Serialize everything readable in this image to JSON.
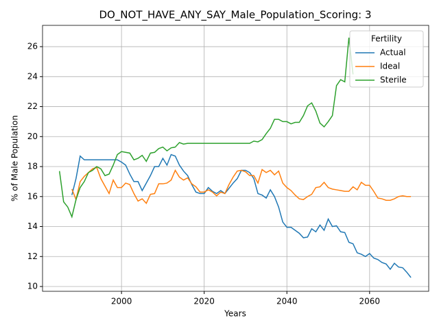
{
  "chart_data": {
    "type": "line",
    "title": "DO_NOT_HAVE_ANY_SAY_Male_Population_Scoring: 3",
    "xlabel": "Years",
    "ylabel": "% of Male Population",
    "legend_title": "Fertility",
    "legend": "upper right",
    "grid": true,
    "xlim": [
      1980.9,
      2074.3
    ],
    "xticks": [
      2000,
      2020,
      2040,
      2060
    ],
    "ylim": [
      9.68,
      27.42
    ],
    "yticks": [
      10,
      12,
      14,
      16,
      18,
      20,
      22,
      24,
      26
    ],
    "x": [
      1985,
      1986,
      1987,
      1988,
      1989,
      1990,
      1991,
      1992,
      1993,
      1994,
      1995,
      1996,
      1997,
      1998,
      1999,
      2000,
      2001,
      2002,
      2003,
      2004,
      2005,
      2006,
      2007,
      2008,
      2009,
      2010,
      2011,
      2012,
      2013,
      2014,
      2015,
      2016,
      2017,
      2018,
      2019,
      2020,
      2021,
      2022,
      2023,
      2024,
      2025,
      2026,
      2027,
      2028,
      2029,
      2030,
      2031,
      2032,
      2033,
      2034,
      2035,
      2036,
      2037,
      2038,
      2039,
      2040,
      2041,
      2042,
      2043,
      2044,
      2045,
      2046,
      2047,
      2048,
      2049,
      2050,
      2051,
      2052,
      2053,
      2054,
      2055,
      2056,
      2057,
      2058,
      2059,
      2060,
      2061,
      2062,
      2063,
      2064,
      2065,
      2066,
      2067,
      2068,
      2069,
      2070
    ],
    "series": [
      {
        "name": "Actual",
        "color": "#1f77b4",
        "values": [
          null,
          null,
          null,
          16.1,
          17.2,
          18.7,
          18.45,
          18.45,
          18.45,
          18.45,
          18.45,
          18.45,
          18.45,
          18.45,
          18.45,
          18.3,
          18.1,
          17.5,
          17.0,
          17.0,
          16.4,
          16.9,
          17.4,
          18.0,
          18.0,
          18.55,
          18.1,
          18.8,
          18.7,
          18.1,
          17.7,
          17.4,
          16.8,
          16.3,
          16.2,
          16.2,
          16.6,
          16.35,
          16.2,
          16.4,
          16.2,
          16.55,
          16.9,
          17.2,
          17.75,
          17.75,
          17.6,
          17.2,
          16.2,
          16.1,
          15.9,
          16.45,
          16.0,
          15.3,
          14.3,
          13.95,
          13.95,
          13.75,
          13.55,
          13.25,
          13.3,
          13.85,
          13.65,
          14.1,
          13.75,
          14.5,
          14.0,
          14.05,
          13.65,
          13.6,
          12.95,
          12.85,
          12.25,
          12.15,
          12.0,
          12.2,
          11.9,
          11.8,
          11.6,
          11.5,
          11.15,
          11.55,
          11.3,
          11.25,
          10.95,
          10.6
        ]
      },
      {
        "name": "Ideal",
        "color": "#ff7f0e",
        "values": [
          null,
          null,
          null,
          16.5,
          15.8,
          17.0,
          17.35,
          17.6,
          17.85,
          17.95,
          17.2,
          16.7,
          16.2,
          17.1,
          16.6,
          16.6,
          16.9,
          16.8,
          16.2,
          15.7,
          15.85,
          15.55,
          16.15,
          16.2,
          16.85,
          16.85,
          16.9,
          17.1,
          17.75,
          17.3,
          17.1,
          17.25,
          16.85,
          16.65,
          16.3,
          16.3,
          16.45,
          16.3,
          16.05,
          16.3,
          16.2,
          16.8,
          17.3,
          17.7,
          17.75,
          17.65,
          17.4,
          17.4,
          16.9,
          17.8,
          17.6,
          17.75,
          17.45,
          17.7,
          16.9,
          16.6,
          16.4,
          16.1,
          15.85,
          15.8,
          16.0,
          16.15,
          16.6,
          16.65,
          16.95,
          16.6,
          16.5,
          16.45,
          16.4,
          16.35,
          16.35,
          16.65,
          16.45,
          16.95,
          16.75,
          16.75,
          16.35,
          15.9,
          15.85,
          15.75,
          15.75,
          15.85,
          16.0,
          16.05,
          16.0,
          16.0
        ]
      },
      {
        "name": "Sterile",
        "color": "#2ca02c",
        "values": [
          17.7,
          15.65,
          15.3,
          14.65,
          15.8,
          16.6,
          17.0,
          17.6,
          17.75,
          18.0,
          17.85,
          17.4,
          17.5,
          18.1,
          18.8,
          19.0,
          18.95,
          18.9,
          18.45,
          18.55,
          18.75,
          18.35,
          18.9,
          18.95,
          19.2,
          19.3,
          19.05,
          19.25,
          19.3,
          19.6,
          19.5,
          19.55,
          19.55,
          19.55,
          19.55,
          19.55,
          19.55,
          19.55,
          19.55,
          19.55,
          19.55,
          19.55,
          19.55,
          19.55,
          19.55,
          19.55,
          19.55,
          19.7,
          19.65,
          19.8,
          20.2,
          20.55,
          21.15,
          21.15,
          21.0,
          21.0,
          20.85,
          20.95,
          20.95,
          21.4,
          22.05,
          22.25,
          21.7,
          20.9,
          20.65,
          21.0,
          21.4,
          23.4,
          23.8,
          23.65,
          26.6,
          24.15,
          null,
          null,
          null,
          null,
          null,
          null,
          null,
          null,
          null,
          null,
          null,
          null,
          null,
          null
        ]
      }
    ]
  }
}
